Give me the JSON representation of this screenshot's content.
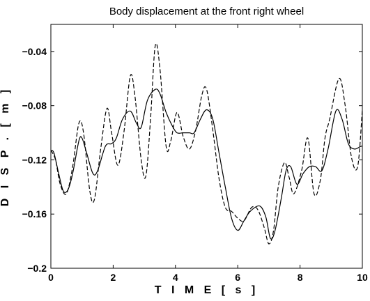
{
  "chart_data": {
    "type": "line",
    "title": "Body displacement at the front right wheel",
    "xlabel": "T I M E   [ s ]",
    "ylabel": "D I S P .   [ m ]",
    "xlim": [
      0,
      10
    ],
    "ylim": [
      -0.2,
      -0.02
    ],
    "xticks": [
      "0",
      "2",
      "4",
      "6",
      "8",
      "10"
    ],
    "yticks": [
      "−0.2",
      "−0.16",
      "−0.12",
      "−0.08",
      "−0.04"
    ],
    "grid": false,
    "series": [
      {
        "style": "solid",
        "color": "#000000",
        "x": [
          0,
          0.1,
          0.25,
          0.4,
          0.55,
          0.7,
          0.9,
          1.0,
          1.15,
          1.35,
          1.5,
          1.75,
          1.95,
          2.1,
          2.3,
          2.55,
          2.75,
          2.9,
          3.1,
          3.35,
          3.5,
          3.7,
          3.9,
          4.05,
          4.25,
          4.45,
          4.6,
          4.8,
          5.0,
          5.2,
          5.4,
          5.6,
          5.8,
          6.0,
          6.2,
          6.4,
          6.7,
          6.9,
          7.05,
          7.2,
          7.4,
          7.55,
          7.7,
          7.9,
          8.1,
          8.3,
          8.5,
          8.7,
          8.9,
          9.15,
          9.35,
          9.55,
          9.75,
          9.95,
          10.0
        ],
        "y": [
          -0.113,
          -0.115,
          -0.13,
          -0.143,
          -0.142,
          -0.13,
          -0.106,
          -0.104,
          -0.115,
          -0.13,
          -0.128,
          -0.11,
          -0.108,
          -0.104,
          -0.09,
          -0.084,
          -0.093,
          -0.096,
          -0.076,
          -0.068,
          -0.071,
          -0.085,
          -0.095,
          -0.1,
          -0.1,
          -0.1,
          -0.1,
          -0.09,
          -0.083,
          -0.09,
          -0.115,
          -0.14,
          -0.163,
          -0.172,
          -0.165,
          -0.158,
          -0.154,
          -0.162,
          -0.178,
          -0.172,
          -0.148,
          -0.128,
          -0.125,
          -0.138,
          -0.13,
          -0.125,
          -0.125,
          -0.128,
          -0.112,
          -0.084,
          -0.09,
          -0.108,
          -0.112,
          -0.11,
          -0.11
        ]
      },
      {
        "style": "dashed",
        "color": "#000000",
        "x": [
          0,
          0.15,
          0.3,
          0.5,
          0.7,
          0.9,
          1.05,
          1.25,
          1.4,
          1.6,
          1.8,
          1.95,
          2.15,
          2.35,
          2.55,
          2.7,
          2.9,
          3.05,
          3.2,
          3.35,
          3.5,
          3.7,
          3.85,
          4.05,
          4.25,
          4.45,
          4.65,
          4.85,
          5.0,
          5.2,
          5.4,
          5.6,
          5.8,
          6.0,
          6.2,
          6.45,
          6.65,
          6.85,
          7.0,
          7.15,
          7.3,
          7.5,
          7.65,
          7.8,
          8.05,
          8.25,
          8.45,
          8.65,
          8.8,
          8.95,
          9.25,
          9.45,
          9.65,
          9.85,
          10.0
        ],
        "y": [
          -0.113,
          -0.12,
          -0.138,
          -0.145,
          -0.125,
          -0.093,
          -0.1,
          -0.143,
          -0.149,
          -0.112,
          -0.082,
          -0.1,
          -0.124,
          -0.099,
          -0.058,
          -0.073,
          -0.12,
          -0.132,
          -0.09,
          -0.036,
          -0.052,
          -0.11,
          -0.106,
          -0.085,
          -0.103,
          -0.112,
          -0.098,
          -0.072,
          -0.068,
          -0.098,
          -0.134,
          -0.155,
          -0.158,
          -0.163,
          -0.165,
          -0.155,
          -0.157,
          -0.17,
          -0.182,
          -0.172,
          -0.14,
          -0.122,
          -0.133,
          -0.145,
          -0.128,
          -0.104,
          -0.145,
          -0.135,
          -0.104,
          -0.09,
          -0.06,
          -0.08,
          -0.118,
          -0.125,
          -0.083
        ]
      }
    ]
  }
}
